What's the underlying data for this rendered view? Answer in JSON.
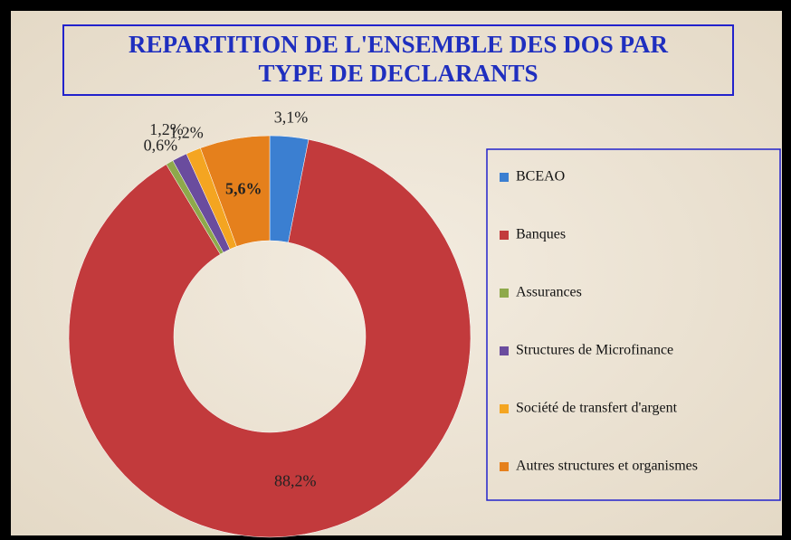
{
  "chart_data": {
    "type": "donut",
    "title": "REPARTITION DE  L'ENSEMBLE DES DOS PAR TYPE DE DECLARANTS",
    "categories": [
      "BCEAO",
      "Banques",
      "Assurances",
      "Structures de Microfinance",
      "Société de transfert d'argent",
      "Autres structures et organismes"
    ],
    "values": [
      3.1,
      88.2,
      0.6,
      1.2,
      1.2,
      5.6
    ],
    "value_labels": [
      "3,1%",
      "88,2%",
      "0,6%",
      "1,2%",
      "1,2%",
      "5,6%"
    ],
    "colors": [
      "#3b7fd1",
      "#c23a3c",
      "#8ea94b",
      "#6a4c9e",
      "#f4a521",
      "#e5801c"
    ],
    "legend": "right"
  }
}
